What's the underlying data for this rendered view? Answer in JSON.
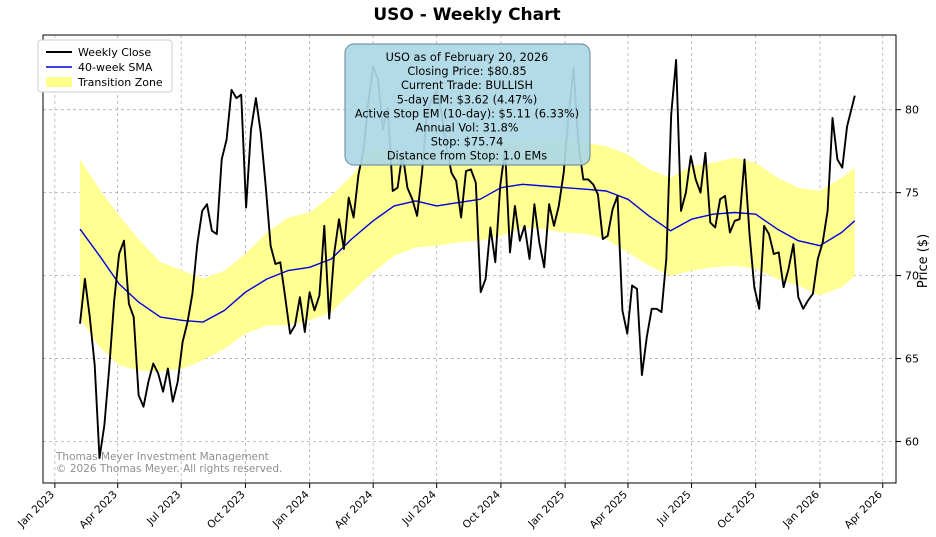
{
  "chart_data": {
    "type": "line",
    "title": "USO - Weekly Chart",
    "ylabel": "Price ($)",
    "xlabel": "",
    "ylim": [
      57.5,
      84.5
    ],
    "xlim": [
      "2022-12-15",
      "2026-04-20"
    ],
    "grid": true,
    "legend_position": "top-left",
    "y_axis_side": "right",
    "y_ticks": [
      60,
      65,
      70,
      75,
      80
    ],
    "x_ticks": [
      {
        "date": "2023-01-01",
        "label": "Jan 2023"
      },
      {
        "date": "2023-04-01",
        "label": "Apr 2023"
      },
      {
        "date": "2023-07-01",
        "label": "Jul 2023"
      },
      {
        "date": "2023-10-01",
        "label": "Oct 2023"
      },
      {
        "date": "2024-01-01",
        "label": "Jan 2024"
      },
      {
        "date": "2024-04-01",
        "label": "Apr 2024"
      },
      {
        "date": "2024-07-01",
        "label": "Jul 2024"
      },
      {
        "date": "2024-10-01",
        "label": "Oct 2024"
      },
      {
        "date": "2025-01-01",
        "label": "Jan 2025"
      },
      {
        "date": "2025-04-01",
        "label": "Apr 2025"
      },
      {
        "date": "2025-07-01",
        "label": "Jul 2025"
      },
      {
        "date": "2025-10-01",
        "label": "Oct 2025"
      },
      {
        "date": "2026-01-01",
        "label": "Jan 2026"
      },
      {
        "date": "2026-04-01",
        "label": "Apr 2026"
      }
    ],
    "colors": {
      "close": "#000000",
      "sma": "#0000e0",
      "zone": "#ffff8c",
      "grid": "#b0b0b0",
      "info_box": "#add8e6",
      "info_border": "#6b8fa0",
      "watermark": "#909090"
    },
    "series": [
      {
        "name": "Weekly Close",
        "points": [
          [
            "2023-02-06",
            67.1
          ],
          [
            "2023-02-13",
            69.8
          ],
          [
            "2023-02-20",
            67.5
          ],
          [
            "2023-02-27",
            64.6
          ],
          [
            "2023-03-06",
            59.0
          ],
          [
            "2023-03-13",
            61.0
          ],
          [
            "2023-03-20",
            64.5
          ],
          [
            "2023-03-27",
            68.5
          ],
          [
            "2023-04-03",
            71.3
          ],
          [
            "2023-04-10",
            72.1
          ],
          [
            "2023-04-17",
            68.3
          ],
          [
            "2023-04-24",
            67.5
          ],
          [
            "2023-05-01",
            62.8
          ],
          [
            "2023-05-08",
            62.1
          ],
          [
            "2023-05-15",
            63.6
          ],
          [
            "2023-05-22",
            64.7
          ],
          [
            "2023-05-29",
            64.1
          ],
          [
            "2023-06-05",
            63.0
          ],
          [
            "2023-06-12",
            64.4
          ],
          [
            "2023-06-19",
            62.4
          ],
          [
            "2023-06-26",
            63.6
          ],
          [
            "2023-07-03",
            66.0
          ],
          [
            "2023-07-10",
            67.2
          ],
          [
            "2023-07-17",
            68.9
          ],
          [
            "2023-07-24",
            71.9
          ],
          [
            "2023-07-31",
            73.9
          ],
          [
            "2023-08-07",
            74.3
          ],
          [
            "2023-08-14",
            72.7
          ],
          [
            "2023-08-21",
            72.5
          ],
          [
            "2023-08-28",
            77.0
          ],
          [
            "2023-09-04",
            78.2
          ],
          [
            "2023-09-11",
            81.2
          ],
          [
            "2023-09-18",
            80.7
          ],
          [
            "2023-09-25",
            80.9
          ],
          [
            "2023-10-02",
            74.1
          ],
          [
            "2023-10-09",
            78.8
          ],
          [
            "2023-10-16",
            80.7
          ],
          [
            "2023-10-23",
            78.6
          ],
          [
            "2023-10-30",
            75.4
          ],
          [
            "2023-11-06",
            71.8
          ],
          [
            "2023-11-13",
            70.7
          ],
          [
            "2023-11-20",
            70.8
          ],
          [
            "2023-11-27",
            68.7
          ],
          [
            "2023-12-04",
            66.5
          ],
          [
            "2023-12-11",
            67.0
          ],
          [
            "2023-12-18",
            68.7
          ],
          [
            "2023-12-25",
            66.6
          ],
          [
            "2024-01-01",
            69.0
          ],
          [
            "2024-01-08",
            67.9
          ],
          [
            "2024-01-15",
            68.8
          ],
          [
            "2024-01-22",
            73.0
          ],
          [
            "2024-01-29",
            67.4
          ],
          [
            "2024-02-05",
            71.3
          ],
          [
            "2024-02-12",
            73.4
          ],
          [
            "2024-02-19",
            71.6
          ],
          [
            "2024-02-26",
            74.7
          ],
          [
            "2024-03-04",
            73.5
          ],
          [
            "2024-03-11",
            76.1
          ],
          [
            "2024-03-18",
            77.5
          ],
          [
            "2024-03-25",
            80.4
          ],
          [
            "2024-04-01",
            82.6
          ],
          [
            "2024-04-08",
            81.8
          ],
          [
            "2024-04-15",
            78.8
          ],
          [
            "2024-04-22",
            80.1
          ],
          [
            "2024-04-29",
            75.1
          ],
          [
            "2024-05-06",
            75.3
          ],
          [
            "2024-05-13",
            77.4
          ],
          [
            "2024-05-20",
            75.3
          ],
          [
            "2024-05-27",
            74.6
          ],
          [
            "2024-06-03",
            73.6
          ],
          [
            "2024-06-10",
            76.2
          ],
          [
            "2024-06-17",
            79.8
          ],
          [
            "2024-06-24",
            80.6
          ],
          [
            "2024-07-01",
            81.1
          ],
          [
            "2024-07-08",
            79.8
          ],
          [
            "2024-07-15",
            77.8
          ],
          [
            "2024-07-22",
            76.2
          ],
          [
            "2024-07-29",
            75.7
          ],
          [
            "2024-08-05",
            73.5
          ],
          [
            "2024-08-12",
            76.3
          ],
          [
            "2024-08-19",
            76.4
          ],
          [
            "2024-08-26",
            75.6
          ],
          [
            "2024-09-02",
            69.0
          ],
          [
            "2024-09-09",
            69.8
          ],
          [
            "2024-09-16",
            72.9
          ],
          [
            "2024-09-23",
            70.8
          ],
          [
            "2024-09-30",
            75.4
          ],
          [
            "2024-10-07",
            77.6
          ],
          [
            "2024-10-14",
            71.4
          ],
          [
            "2024-10-21",
            74.2
          ],
          [
            "2024-10-28",
            72.1
          ],
          [
            "2024-11-04",
            73.0
          ],
          [
            "2024-11-11",
            71.0
          ],
          [
            "2024-11-18",
            74.3
          ],
          [
            "2024-11-25",
            72.0
          ],
          [
            "2024-12-02",
            70.5
          ],
          [
            "2024-12-09",
            74.3
          ],
          [
            "2024-12-16",
            73.0
          ],
          [
            "2024-12-23",
            74.2
          ],
          [
            "2024-12-30",
            76.2
          ],
          [
            "2025-01-06",
            79.6
          ],
          [
            "2025-01-13",
            82.5
          ],
          [
            "2025-01-20",
            78.0
          ],
          [
            "2025-01-27",
            75.8
          ],
          [
            "2025-02-03",
            75.8
          ],
          [
            "2025-02-10",
            75.5
          ],
          [
            "2025-02-17",
            74.9
          ],
          [
            "2025-02-24",
            72.2
          ],
          [
            "2025-03-03",
            72.4
          ],
          [
            "2025-03-10",
            74.0
          ],
          [
            "2025-03-17",
            74.8
          ],
          [
            "2025-03-24",
            67.9
          ],
          [
            "2025-03-31",
            66.5
          ],
          [
            "2025-04-07",
            69.4
          ],
          [
            "2025-04-14",
            69.2
          ],
          [
            "2025-04-21",
            64.0
          ],
          [
            "2025-04-28",
            66.3
          ],
          [
            "2025-05-05",
            68.0
          ],
          [
            "2025-05-12",
            68.0
          ],
          [
            "2025-05-19",
            67.8
          ],
          [
            "2025-05-26",
            71.0
          ],
          [
            "2025-06-02",
            79.7
          ],
          [
            "2025-06-09",
            83.0
          ],
          [
            "2025-06-16",
            73.9
          ],
          [
            "2025-06-23",
            75.0
          ],
          [
            "2025-06-30",
            77.2
          ],
          [
            "2025-07-07",
            75.8
          ],
          [
            "2025-07-14",
            75.0
          ],
          [
            "2025-07-21",
            77.4
          ],
          [
            "2025-07-28",
            73.2
          ],
          [
            "2025-08-04",
            72.9
          ],
          [
            "2025-08-11",
            74.6
          ],
          [
            "2025-08-18",
            74.8
          ],
          [
            "2025-08-25",
            72.6
          ],
          [
            "2025-09-01",
            73.3
          ],
          [
            "2025-09-08",
            73.4
          ],
          [
            "2025-09-15",
            77.0
          ],
          [
            "2025-09-22",
            72.6
          ],
          [
            "2025-09-29",
            69.3
          ],
          [
            "2025-10-06",
            68.0
          ],
          [
            "2025-10-13",
            73.0
          ],
          [
            "2025-10-20",
            72.5
          ],
          [
            "2025-10-27",
            71.3
          ],
          [
            "2025-11-03",
            71.4
          ],
          [
            "2025-11-10",
            69.3
          ],
          [
            "2025-11-17",
            70.4
          ],
          [
            "2025-11-24",
            71.9
          ],
          [
            "2025-12-01",
            68.7
          ],
          [
            "2025-12-08",
            68.0
          ],
          [
            "2025-12-15",
            68.5
          ],
          [
            "2025-12-22",
            68.9
          ],
          [
            "2025-12-29",
            71.0
          ],
          [
            "2026-01-05",
            72.0
          ],
          [
            "2026-01-12",
            73.9
          ],
          [
            "2026-01-19",
            79.5
          ],
          [
            "2026-01-26",
            77.0
          ],
          [
            "2026-02-02",
            76.5
          ],
          [
            "2026-02-09",
            79.0
          ],
          [
            "2026-02-20",
            80.85
          ]
        ]
      },
      {
        "name": "40-week SMA",
        "points": [
          [
            "2023-02-06",
            72.8
          ],
          [
            "2023-03-06",
            71.2
          ],
          [
            "2023-04-03",
            69.5
          ],
          [
            "2023-05-01",
            68.4
          ],
          [
            "2023-06-01",
            67.5
          ],
          [
            "2023-07-03",
            67.3
          ],
          [
            "2023-08-01",
            67.2
          ],
          [
            "2023-09-01",
            67.9
          ],
          [
            "2023-10-01",
            69.0
          ],
          [
            "2023-11-01",
            69.8
          ],
          [
            "2023-12-01",
            70.3
          ],
          [
            "2024-01-01",
            70.5
          ],
          [
            "2024-02-01",
            71.0
          ],
          [
            "2024-03-01",
            72.2
          ],
          [
            "2024-04-01",
            73.3
          ],
          [
            "2024-05-01",
            74.2
          ],
          [
            "2024-06-01",
            74.5
          ],
          [
            "2024-07-01",
            74.2
          ],
          [
            "2024-08-01",
            74.4
          ],
          [
            "2024-09-01",
            74.6
          ],
          [
            "2024-10-01",
            75.3
          ],
          [
            "2024-11-01",
            75.5
          ],
          [
            "2024-12-01",
            75.4
          ],
          [
            "2025-01-01",
            75.3
          ],
          [
            "2025-02-01",
            75.2
          ],
          [
            "2025-03-01",
            75.1
          ],
          [
            "2025-04-01",
            74.6
          ],
          [
            "2025-05-01",
            73.6
          ],
          [
            "2025-06-01",
            72.7
          ],
          [
            "2025-07-01",
            73.4
          ],
          [
            "2025-08-01",
            73.7
          ],
          [
            "2025-09-01",
            73.8
          ],
          [
            "2025-10-01",
            73.7
          ],
          [
            "2025-11-01",
            72.8
          ],
          [
            "2025-12-01",
            72.1
          ],
          [
            "2026-01-01",
            71.8
          ],
          [
            "2026-02-01",
            72.6
          ],
          [
            "2026-02-20",
            73.3
          ]
        ]
      },
      {
        "name": "Transition Zone",
        "band": [
          [
            "2023-02-06",
            67.4,
            77.0
          ],
          [
            "2023-03-06",
            65.7,
            75.2
          ],
          [
            "2023-04-03",
            64.6,
            73.6
          ],
          [
            "2023-05-01",
            64.3,
            72.2
          ],
          [
            "2023-06-01",
            64.2,
            70.8
          ],
          [
            "2023-07-03",
            64.4,
            70.3
          ],
          [
            "2023-08-01",
            64.9,
            69.8
          ],
          [
            "2023-09-01",
            65.6,
            70.3
          ],
          [
            "2023-10-01",
            66.5,
            71.3
          ],
          [
            "2023-11-01",
            67.0,
            72.6
          ],
          [
            "2023-12-01",
            67.0,
            73.5
          ],
          [
            "2024-01-01",
            67.3,
            73.8
          ],
          [
            "2024-02-01",
            67.8,
            74.8
          ],
          [
            "2024-03-01",
            69.0,
            76.0
          ],
          [
            "2024-04-01",
            70.2,
            77.8
          ],
          [
            "2024-05-01",
            71.2,
            77.5
          ],
          [
            "2024-06-01",
            71.7,
            77.3
          ],
          [
            "2024-07-01",
            71.8,
            77.6
          ],
          [
            "2024-08-01",
            72.0,
            77.5
          ],
          [
            "2024-09-01",
            72.1,
            77.7
          ],
          [
            "2024-10-01",
            72.4,
            78.0
          ],
          [
            "2024-11-01",
            72.9,
            78.2
          ],
          [
            "2024-12-01",
            72.8,
            78.0
          ],
          [
            "2025-01-01",
            72.6,
            78.2
          ],
          [
            "2025-02-01",
            72.5,
            78.0
          ],
          [
            "2025-03-01",
            72.2,
            77.8
          ],
          [
            "2025-04-01",
            71.4,
            77.3
          ],
          [
            "2025-05-01",
            70.6,
            76.4
          ],
          [
            "2025-06-01",
            70.0,
            75.9
          ],
          [
            "2025-07-01",
            70.3,
            76.6
          ],
          [
            "2025-08-01",
            70.5,
            76.8
          ],
          [
            "2025-09-01",
            70.6,
            77.1
          ],
          [
            "2025-10-01",
            70.4,
            76.8
          ],
          [
            "2025-11-01",
            69.8,
            75.9
          ],
          [
            "2025-12-01",
            69.4,
            75.3
          ],
          [
            "2026-01-01",
            68.8,
            75.1
          ],
          [
            "2026-02-01",
            69.3,
            75.9
          ],
          [
            "2026-02-20",
            70.0,
            76.5
          ]
        ]
      }
    ],
    "info_box": {
      "lines": [
        "USO as of February 20, 2026",
        "Closing Price: $80.85",
        "Current Trade: BULLISH",
        "5-day EM: $3.62 (4.47%)",
        "Active Stop EM (10-day): $5.11 (6.33%)",
        "Annual Vol: 31.8%",
        "Stop: $75.74",
        "Distance from Stop: 1.0 EMs"
      ]
    },
    "watermark": {
      "lines": [
        "Thomas Meyer Investment Management",
        "© 2026 Thomas Meyer. All rights reserved."
      ]
    }
  }
}
